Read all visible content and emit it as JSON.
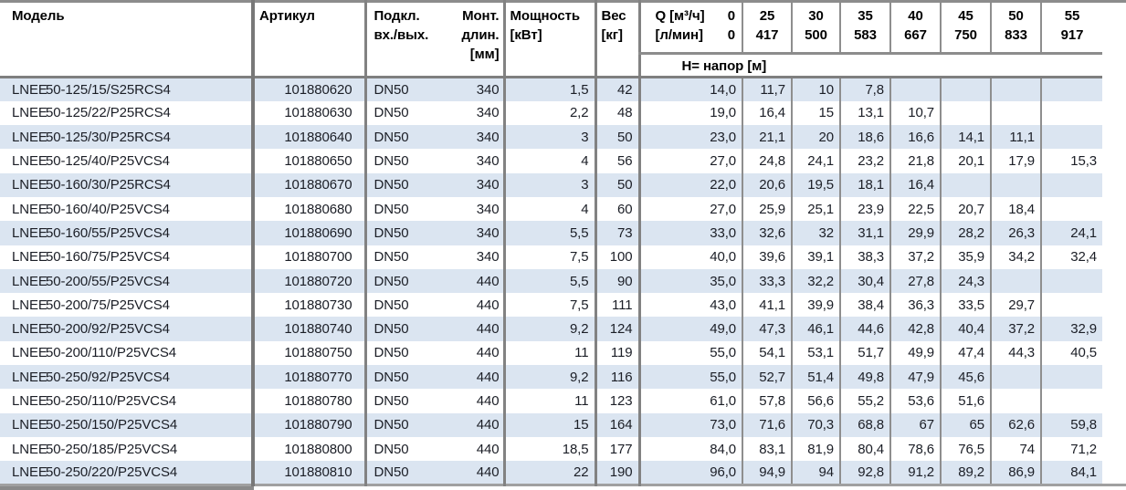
{
  "colors": {
    "stripe_blue": "#dbe5f1",
    "row_white": "#ffffff",
    "grid_gray": "#8c8c8c",
    "heavy_rule_gray": "#7f7f7f",
    "text": "#1b1e26"
  },
  "header": {
    "col_model": "Модель",
    "col_article": "Артикул",
    "conn_line1": "Подкл.",
    "conn_line2": "вх./вых.",
    "len_line1": "Монт.",
    "len_line2": "длин.",
    "len_line3": "[мм]",
    "power_line1": "Мощность",
    "power_line2": "[кВт]",
    "weight_line1": "Вес",
    "weight_line2": "[кг]",
    "q_label": "Q [м³/ч]",
    "q_zero": "0",
    "lmin_label": "[л/мин]",
    "lmin_zero": "0",
    "q_cols": [
      {
        "q": "25",
        "l": "417"
      },
      {
        "q": "30",
        "l": "500"
      },
      {
        "q": "35",
        "l": "583"
      },
      {
        "q": "40",
        "l": "667"
      },
      {
        "q": "45",
        "l": "750"
      },
      {
        "q": "50",
        "l": "833"
      },
      {
        "q": "55",
        "l": "917"
      }
    ],
    "head_band_label": "H= напор [м]"
  },
  "rows": [
    {
      "brand": "LNEE",
      "model": "50-125/15/S25RCS4",
      "article": "101880620",
      "conn": "DN50",
      "length": "340",
      "power": "1,5",
      "weight": "42",
      "h": [
        "14,0",
        "11,7",
        "10",
        "7,8",
        "",
        "",
        "",
        ""
      ]
    },
    {
      "brand": "LNEE",
      "model": "50-125/22/P25RCS4",
      "article": "101880630",
      "conn": "DN50",
      "length": "340",
      "power": "2,2",
      "weight": "48",
      "h": [
        "19,0",
        "16,4",
        "15",
        "13,1",
        "10,7",
        "",
        "",
        ""
      ]
    },
    {
      "brand": "LNEE",
      "model": "50-125/30/P25RCS4",
      "article": "101880640",
      "conn": "DN50",
      "length": "340",
      "power": "3",
      "weight": "50",
      "h": [
        "23,0",
        "21,1",
        "20",
        "18,6",
        "16,6",
        "14,1",
        "11,1",
        ""
      ]
    },
    {
      "brand": "LNEE",
      "model": "50-125/40/P25VCS4",
      "article": "101880650",
      "conn": "DN50",
      "length": "340",
      "power": "4",
      "weight": "56",
      "h": [
        "27,0",
        "24,8",
        "24,1",
        "23,2",
        "21,8",
        "20,1",
        "17,9",
        "15,3"
      ]
    },
    {
      "brand": "LNEE",
      "model": "50-160/30/P25RCS4",
      "article": "101880670",
      "conn": "DN50",
      "length": "340",
      "power": "3",
      "weight": "50",
      "h": [
        "22,0",
        "20,6",
        "19,5",
        "18,1",
        "16,4",
        "",
        "",
        ""
      ]
    },
    {
      "brand": "LNEE",
      "model": "50-160/40/P25VCS4",
      "article": "101880680",
      "conn": "DN50",
      "length": "340",
      "power": "4",
      "weight": "60",
      "h": [
        "27,0",
        "25,9",
        "25,1",
        "23,9",
        "22,5",
        "20,7",
        "18,4",
        ""
      ]
    },
    {
      "brand": "LNEE",
      "model": "50-160/55/P25VCS4",
      "article": "101880690",
      "conn": "DN50",
      "length": "340",
      "power": "5,5",
      "weight": "73",
      "h": [
        "33,0",
        "32,6",
        "32",
        "31,1",
        "29,9",
        "28,2",
        "26,3",
        "24,1"
      ]
    },
    {
      "brand": "LNEE",
      "model": "50-160/75/P25VCS4",
      "article": "101880700",
      "conn": "DN50",
      "length": "340",
      "power": "7,5",
      "weight": "100",
      "h": [
        "40,0",
        "39,6",
        "39,1",
        "38,3",
        "37,2",
        "35,9",
        "34,2",
        "32,4"
      ]
    },
    {
      "brand": "LNEE",
      "model": "50-200/55/P25VCS4",
      "article": "101880720",
      "conn": "DN50",
      "length": "440",
      "power": "5,5",
      "weight": "90",
      "h": [
        "35,0",
        "33,3",
        "32,2",
        "30,4",
        "27,8",
        "24,3",
        "",
        ""
      ]
    },
    {
      "brand": "LNEE",
      "model": "50-200/75/P25VCS4",
      "article": "101880730",
      "conn": "DN50",
      "length": "440",
      "power": "7,5",
      "weight": "111",
      "h": [
        "43,0",
        "41,1",
        "39,9",
        "38,4",
        "36,3",
        "33,5",
        "29,7",
        ""
      ]
    },
    {
      "brand": "LNEE",
      "model": "50-200/92/P25VCS4",
      "article": "101880740",
      "conn": "DN50",
      "length": "440",
      "power": "9,2",
      "weight": "124",
      "h": [
        "49,0",
        "47,3",
        "46,1",
        "44,6",
        "42,8",
        "40,4",
        "37,2",
        "32,9"
      ]
    },
    {
      "brand": "LNEE",
      "model": "50-200/110/P25VCS4",
      "article": "101880750",
      "conn": "DN50",
      "length": "440",
      "power": "11",
      "weight": "119",
      "h": [
        "55,0",
        "54,1",
        "53,1",
        "51,7",
        "49,9",
        "47,4",
        "44,3",
        "40,5"
      ]
    },
    {
      "brand": "LNEE",
      "model": "50-250/92/P25VCS4",
      "article": "101880770",
      "conn": "DN50",
      "length": "440",
      "power": "9,2",
      "weight": "116",
      "h": [
        "55,0",
        "52,7",
        "51,4",
        "49,8",
        "47,9",
        "45,6",
        "",
        ""
      ]
    },
    {
      "brand": "LNEE",
      "model": "50-250/110/P25VCS4",
      "article": "101880780",
      "conn": "DN50",
      "length": "440",
      "power": "11",
      "weight": "123",
      "h": [
        "61,0",
        "57,8",
        "56,6",
        "55,2",
        "53,6",
        "51,6",
        "",
        ""
      ]
    },
    {
      "brand": "LNEE",
      "model": "50-250/150/P25VCS4",
      "article": "101880790",
      "conn": "DN50",
      "length": "440",
      "power": "15",
      "weight": "164",
      "h": [
        "73,0",
        "71,6",
        "70,3",
        "68,8",
        "67",
        "65",
        "62,6",
        "59,8"
      ]
    },
    {
      "brand": "LNEE",
      "model": "50-250/185/P25VCS4",
      "article": "101880800",
      "conn": "DN50",
      "length": "440",
      "power": "18,5",
      "weight": "177",
      "h": [
        "84,0",
        "83,1",
        "81,9",
        "80,4",
        "78,6",
        "76,5",
        "74",
        "71,2"
      ]
    },
    {
      "brand": "LNEE",
      "model": "50-250/220/P25VCS4",
      "article": "101880810",
      "conn": "DN50",
      "length": "440",
      "power": "22",
      "weight": "190",
      "h": [
        "96,0",
        "94,9",
        "94",
        "92,8",
        "91,2",
        "89,2",
        "86,9",
        "84,1"
      ]
    }
  ]
}
